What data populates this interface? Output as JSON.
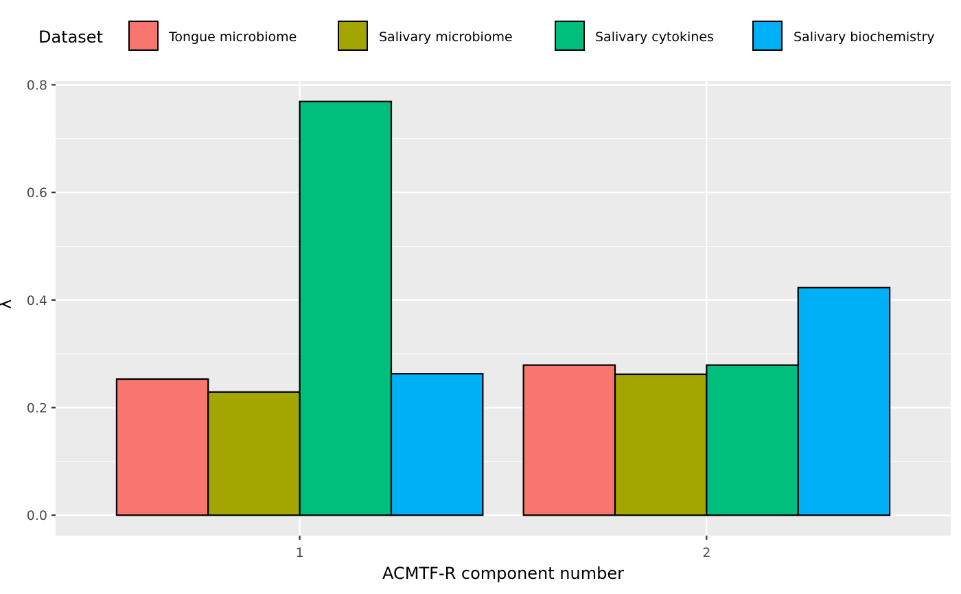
{
  "chart_data": {
    "type": "bar",
    "categories": [
      "1",
      "2"
    ],
    "series": [
      {
        "name": "Tongue microbiome",
        "color": "#F8766D",
        "values": [
          0.253,
          0.279
        ]
      },
      {
        "name": "Salivary microbiome",
        "color": "#A3A500",
        "values": [
          0.229,
          0.262
        ]
      },
      {
        "name": "Salivary cytokines",
        "color": "#00BF7D",
        "values": [
          0.769,
          0.279
        ]
      },
      {
        "name": "Salivary biochemistry",
        "color": "#00B0F6",
        "values": [
          0.263,
          0.423
        ]
      }
    ],
    "xlabel": "ACMTF-R component number",
    "ylabel": "λ",
    "ylim": [
      -0.038,
      0.807
    ],
    "yticks": [
      "0.0",
      "0.2",
      "0.4",
      "0.6",
      "0.8"
    ],
    "legend": {
      "title": "Dataset",
      "position": "top"
    },
    "grid": true,
    "panel_color": "#EBEBEB"
  }
}
